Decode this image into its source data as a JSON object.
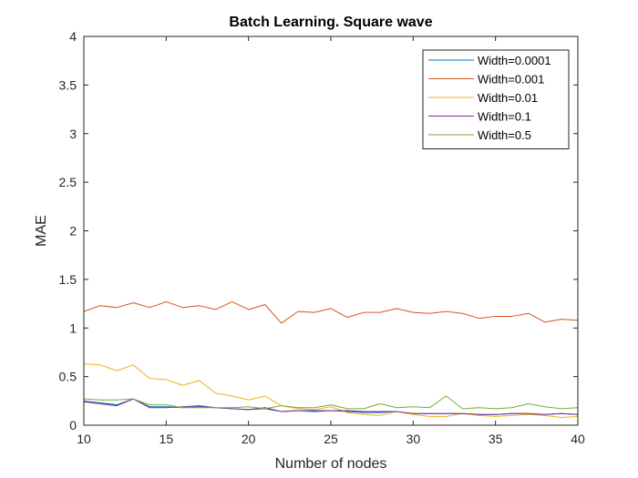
{
  "chart_data": {
    "type": "line",
    "title": "Batch Learning. Square wave",
    "xlabel": "Number of nodes",
    "ylabel": "MAE",
    "xlim": [
      10,
      40
    ],
    "ylim": [
      0,
      4
    ],
    "x_ticks": [
      "10",
      "15",
      "20",
      "25",
      "30",
      "35",
      "40"
    ],
    "y_ticks": [
      "0",
      "0.5",
      "1",
      "1.5",
      "2",
      "2.5",
      "3",
      "3.5",
      "4"
    ],
    "grid": false,
    "legend_position": "top-right",
    "x": [
      10,
      11,
      12,
      13,
      14,
      15,
      16,
      17,
      18,
      19,
      20,
      21,
      22,
      23,
      24,
      25,
      26,
      27,
      28,
      29,
      30,
      31,
      32,
      33,
      34,
      35,
      36,
      37,
      38,
      39,
      40
    ],
    "series": [
      {
        "name": "Width=0.0001",
        "color": "#0072BD",
        "values": [
          0.25,
          0.23,
          0.21,
          0.27,
          0.19,
          0.19,
          0.18,
          0.19,
          0.18,
          0.17,
          0.16,
          0.17,
          0.14,
          0.15,
          0.14,
          0.15,
          0.14,
          0.13,
          0.13,
          0.14,
          0.12,
          0.12,
          0.12,
          0.12,
          0.11,
          0.11,
          0.12,
          0.12,
          0.11,
          0.12,
          0.11
        ]
      },
      {
        "name": "Width=0.001",
        "color": "#D95319",
        "values": [
          1.17,
          1.23,
          1.21,
          1.26,
          1.21,
          1.27,
          1.21,
          1.23,
          1.19,
          1.27,
          1.19,
          1.24,
          1.05,
          1.17,
          1.16,
          1.2,
          1.11,
          1.16,
          1.16,
          1.2,
          1.16,
          1.15,
          1.17,
          1.15,
          1.1,
          1.12,
          1.12,
          1.15,
          1.06,
          1.09,
          1.08
        ]
      },
      {
        "name": "Width=0.01",
        "color": "#EDB120",
        "values": [
          0.63,
          0.62,
          0.56,
          0.62,
          0.48,
          0.47,
          0.41,
          0.46,
          0.33,
          0.3,
          0.26,
          0.3,
          0.2,
          0.17,
          0.16,
          0.19,
          0.13,
          0.11,
          0.1,
          0.14,
          0.11,
          0.09,
          0.09,
          0.12,
          0.1,
          0.09,
          0.1,
          0.11,
          0.1,
          0.08,
          0.09
        ]
      },
      {
        "name": "Width=0.1",
        "color": "#7E2F8E",
        "values": [
          0.24,
          0.22,
          0.2,
          0.27,
          0.18,
          0.18,
          0.19,
          0.2,
          0.18,
          0.17,
          0.16,
          0.18,
          0.14,
          0.15,
          0.15,
          0.15,
          0.15,
          0.14,
          0.14,
          0.14,
          0.12,
          0.12,
          0.12,
          0.12,
          0.11,
          0.11,
          0.12,
          0.12,
          0.11,
          0.12,
          0.11
        ]
      },
      {
        "name": "Width=0.5",
        "color": "#77AC30",
        "values": [
          0.27,
          0.26,
          0.26,
          0.27,
          0.21,
          0.21,
          0.18,
          0.18,
          0.18,
          0.18,
          0.19,
          0.17,
          0.2,
          0.18,
          0.18,
          0.21,
          0.17,
          0.17,
          0.22,
          0.18,
          0.19,
          0.18,
          0.3,
          0.17,
          0.18,
          0.17,
          0.18,
          0.22,
          0.19,
          0.17,
          0.18
        ]
      }
    ]
  }
}
